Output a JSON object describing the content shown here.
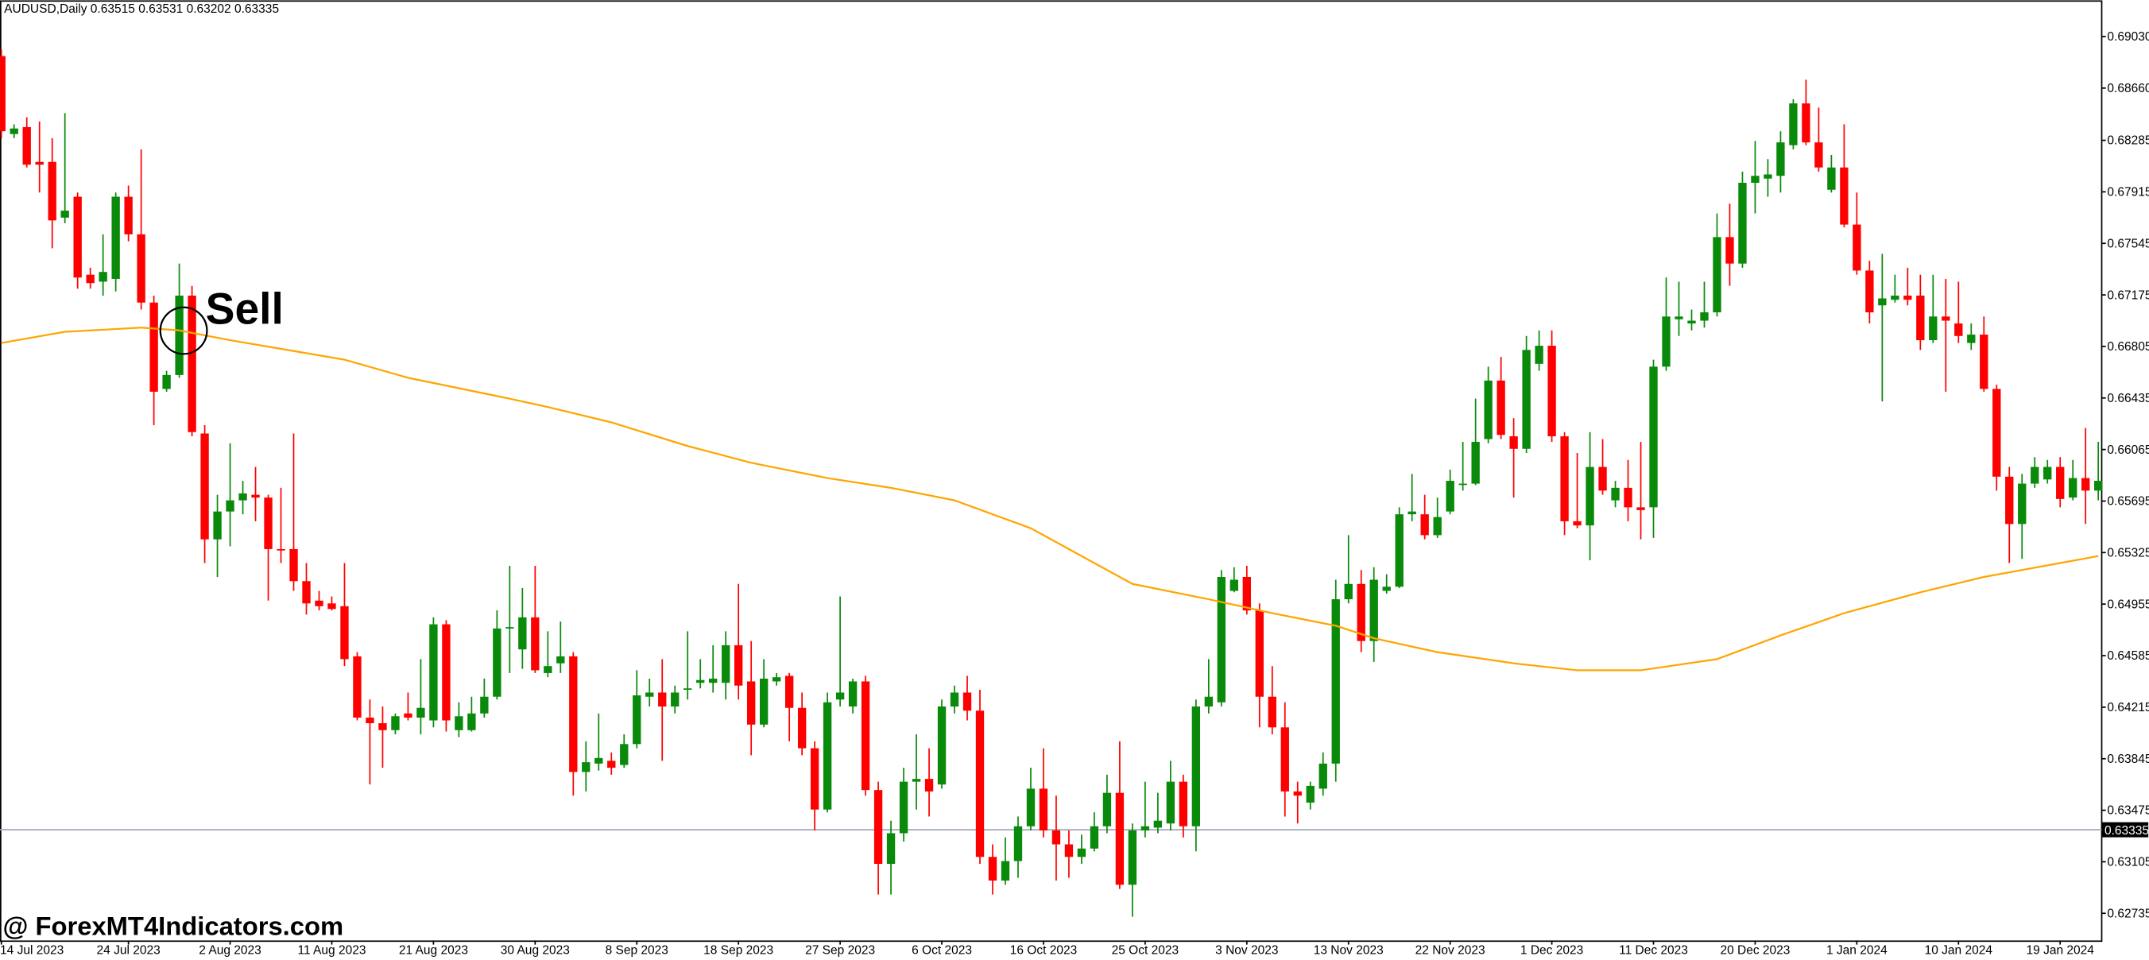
{
  "chart_data": {
    "type": "candlestick",
    "header": "AUDUSD,Daily  0.63515 0.63531 0.63202 0.63335",
    "annotation": "Sell",
    "watermark": "@ ForexMT4Indicators.com",
    "up_color": "#0a8a0a",
    "down_color": "#ff0000",
    "categories": [
      "14 Jul 2023",
      null,
      null,
      null,
      null,
      null,
      null,
      null,
      null,
      null,
      "24 Jul 2023",
      null,
      null,
      null,
      null,
      null,
      null,
      null,
      "2 Aug 2023",
      null,
      null,
      null,
      null,
      null,
      null,
      null,
      "11 Aug 2023",
      null,
      null,
      null,
      null,
      null,
      null,
      null,
      "21 Aug 2023",
      null,
      null,
      null,
      null,
      null,
      null,
      null,
      "30 Aug 2023",
      null,
      null,
      null,
      null,
      null,
      null,
      null,
      "8 Sep 2023",
      null,
      null,
      null,
      null,
      null,
      null,
      null,
      "18 Sep 2023",
      null,
      null,
      null,
      null,
      null,
      null,
      null,
      "27 Sep 2023",
      null,
      null,
      null,
      null,
      null,
      null,
      null,
      "6 Oct 2023",
      null,
      null,
      null,
      null,
      null,
      null,
      null,
      "16 Oct 2023",
      null,
      null,
      null,
      null,
      null,
      null,
      null,
      "25 Oct 2023",
      null,
      null,
      null,
      null,
      null,
      null,
      null,
      "3 Nov 2023",
      null,
      null,
      null,
      null,
      null,
      null,
      null,
      "13 Nov 2023",
      null,
      null,
      null,
      null,
      null,
      null,
      null,
      "22 Nov 2023",
      null,
      null,
      null,
      null,
      null,
      null,
      null,
      "1 Dec 2023",
      null,
      null,
      null,
      null,
      null,
      null,
      null,
      "11 Dec 2023",
      null,
      null,
      null,
      null,
      null,
      null,
      null,
      "20 Dec 2023",
      null,
      null,
      null,
      null,
      null,
      null,
      null,
      "1 Jan 2024",
      null,
      null,
      null,
      null,
      null,
      null,
      null,
      "10 Jan 2024",
      null,
      null,
      null,
      null,
      null,
      null,
      null,
      "19 Jan 2024",
      null,
      null,
      null
    ],
    "open": [
      0.6889,
      0.6833,
      0.6838,
      0.6813,
      0.6813,
      0.6773,
      0.6788,
      0.6732,
      0.6727,
      0.6729,
      0.6788,
      0.6761,
      0.6712,
      0.665,
      0.666,
      0.6717,
      0.6618,
      0.6542,
      0.6562,
      0.657,
      0.6574,
      0.6572,
      0.6535,
      0.6535,
      0.6512,
      0.6498,
      0.6496,
      0.6494,
      0.6458,
      0.6414,
      0.641,
      0.6405,
      0.6417,
      0.6414,
      0.6412,
      0.6481,
      0.6405,
      0.6405,
      0.6417,
      0.6429,
      0.6478,
      0.6463,
      0.6486,
      0.6446,
      0.6453,
      0.6458,
      0.6375,
      0.6381,
      0.6383,
      0.638,
      0.6395,
      0.6429,
      0.6432,
      0.6422,
      0.6434,
      0.6439,
      0.6439,
      0.6439,
      0.6466,
      0.644,
      0.6409,
      0.644,
      0.6444,
      0.6421,
      0.6392,
      0.6348,
      0.6427,
      0.6422,
      0.644,
      0.6362,
      0.6309,
      0.6331,
      0.6368,
      0.637,
      0.6366,
      0.6422,
      0.6432,
      0.6419,
      0.6314,
      0.6297,
      0.6311,
      0.6336,
      0.6363,
      0.6333,
      0.6323,
      0.6314,
      0.632,
      0.6336,
      0.636,
      0.6294,
      0.6333,
      0.6335,
      0.6338,
      0.6368,
      0.6336,
      0.6422,
      0.6425,
      0.6505,
      0.6515,
      0.6491,
      0.6429,
      0.6407,
      0.6361,
      0.6353,
      0.6363,
      0.6381,
      0.6499,
      0.651,
      0.6469,
      0.6505,
      0.6508,
      0.656,
      0.656,
      0.6545,
      0.6562,
      0.6581,
      0.6582,
      0.6614,
      0.6656,
      0.6616,
      0.6607,
      0.6668,
      0.6681,
      0.6616,
      0.6555,
      0.6552,
      0.6594,
      0.657,
      0.6579,
      0.6565,
      0.6565,
      0.6666,
      0.67,
      0.6697,
      0.6699,
      0.6705,
      0.6759,
      0.674,
      0.6798,
      0.6801,
      0.6803,
      0.6825,
      0.6855,
      0.6827,
      0.6793,
      0.6809,
      0.6768,
      0.6735,
      0.671,
      0.6714,
      0.6717,
      0.6717,
      0.6685,
      0.6702,
      0.6697,
      0.6683,
      0.6689,
      0.665,
      0.6587,
      0.6553,
      0.6582,
      0.6585,
      0.6594,
      0.6572,
      0.6586,
      0.6577
    ],
    "high": [
      0.6894,
      0.684,
      0.6845,
      0.6842,
      0.683,
      0.6848,
      0.6791,
      0.6737,
      0.6761,
      0.6791,
      0.6796,
      0.6822,
      0.6717,
      0.6663,
      0.674,
      0.6724,
      0.6624,
      0.6574,
      0.6611,
      0.6584,
      0.6594,
      0.6574,
      0.6579,
      0.6618,
      0.6525,
      0.6505,
      0.6501,
      0.6525,
      0.6461,
      0.6427,
      0.6422,
      0.6417,
      0.6432,
      0.6456,
      0.6486,
      0.6484,
      0.6425,
      0.6429,
      0.6442,
      0.6491,
      0.6523,
      0.6507,
      0.6523,
      0.6476,
      0.6483,
      0.6461,
      0.6397,
      0.6417,
      0.6389,
      0.6402,
      0.6448,
      0.6442,
      0.6456,
      0.6437,
      0.6476,
      0.6456,
      0.6466,
      0.6476,
      0.651,
      0.6469,
      0.6456,
      0.6446,
      0.6446,
      0.6432,
      0.6397,
      0.6432,
      0.6501,
      0.6442,
      0.6444,
      0.6368,
      0.634,
      0.6378,
      0.6402,
      0.6392,
      0.6427,
      0.6437,
      0.6444,
      0.6434,
      0.6323,
      0.6328,
      0.6343,
      0.6378,
      0.6392,
      0.6358,
      0.6333,
      0.633,
      0.6346,
      0.6373,
      0.6397,
      0.6338,
      0.6368,
      0.636,
      0.6383,
      0.6373,
      0.6427,
      0.6456,
      0.652,
      0.6522,
      0.6523,
      0.6496,
      0.6451,
      0.6425,
      0.6368,
      0.6368,
      0.6389,
      0.6513,
      0.6545,
      0.652,
      0.6522,
      0.6517,
      0.6565,
      0.6589,
      0.6574,
      0.6572,
      0.6592,
      0.6612,
      0.6643,
      0.6666,
      0.6673,
      0.6629,
      0.6688,
      0.6692,
      0.6692,
      0.6619,
      0.6604,
      0.6619,
      0.6614,
      0.6584,
      0.6599,
      0.6612,
      0.6671,
      0.673,
      0.6727,
      0.6707,
      0.6727,
      0.6776,
      0.6783,
      0.6806,
      0.6828,
      0.6815,
      0.6835,
      0.6858,
      0.6872,
      0.6852,
      0.6818,
      0.684,
      0.6791,
      0.6742,
      0.6747,
      0.6732,
      0.6737,
      0.6732,
      0.6732,
      0.6729,
      0.6727,
      0.6697,
      0.6702,
      0.6653,
      0.6594,
      0.6589,
      0.6601,
      0.6599,
      0.6601,
      0.6599,
      0.6622,
      0.6612
    ],
    "low": [
      0.683,
      0.683,
      0.6809,
      0.6791,
      0.6751,
      0.6769,
      0.6722,
      0.6722,
      0.6717,
      0.672,
      0.6756,
      0.6707,
      0.6624,
      0.6648,
      0.6658,
      0.6616,
      0.6525,
      0.6515,
      0.6537,
      0.656,
      0.6555,
      0.6498,
      0.6525,
      0.6505,
      0.6488,
      0.6491,
      0.6491,
      0.6451,
      0.6412,
      0.6366,
      0.6378,
      0.6402,
      0.6412,
      0.6402,
      0.6407,
      0.6404,
      0.64,
      0.6404,
      0.6414,
      0.6427,
      0.6446,
      0.6449,
      0.6446,
      0.6443,
      0.6446,
      0.6358,
      0.6361,
      0.6376,
      0.6373,
      0.6378,
      0.6392,
      0.6422,
      0.6383,
      0.6417,
      0.6427,
      0.6435,
      0.6432,
      0.6427,
      0.6427,
      0.6387,
      0.6407,
      0.6437,
      0.6397,
      0.6387,
      0.6333,
      0.6346,
      0.6422,
      0.6417,
      0.6358,
      0.6287,
      0.6287,
      0.6325,
      0.6348,
      0.6343,
      0.6363,
      0.6417,
      0.6412,
      0.6309,
      0.6287,
      0.6294,
      0.6299,
      0.6333,
      0.6328,
      0.6297,
      0.6299,
      0.6309,
      0.6318,
      0.6331,
      0.6291,
      0.6271,
      0.6328,
      0.6331,
      0.6333,
      0.6328,
      0.6318,
      0.6417,
      0.6422,
      0.6504,
      0.6488,
      0.6407,
      0.6402,
      0.6343,
      0.6338,
      0.6348,
      0.6358,
      0.6368,
      0.6496,
      0.6461,
      0.6454,
      0.6503,
      0.6507,
      0.6555,
      0.6542,
      0.6543,
      0.656,
      0.6577,
      0.6581,
      0.6611,
      0.6614,
      0.6572,
      0.6604,
      0.6663,
      0.6612,
      0.6545,
      0.655,
      0.6527,
      0.6574,
      0.6565,
      0.6555,
      0.6542,
      0.6543,
      0.6663,
      0.6688,
      0.6692,
      0.6694,
      0.6702,
      0.6724,
      0.6737,
      0.6776,
      0.6788,
      0.6791,
      0.6822,
      0.6825,
      0.6806,
      0.6791,
      0.6766,
      0.6732,
      0.6697,
      0.6641,
      0.6712,
      0.671,
      0.6678,
      0.6683,
      0.6648,
      0.6683,
      0.6678,
      0.6648,
      0.6577,
      0.6525,
      0.6528,
      0.6579,
      0.6582,
      0.6565,
      0.657,
      0.6553,
      0.657
    ],
    "close": [
      0.6835,
      0.6837,
      0.6811,
      0.6811,
      0.6771,
      0.6778,
      0.673,
      0.6726,
      0.6734,
      0.6788,
      0.6761,
      0.6712,
      0.6648,
      0.666,
      0.6717,
      0.6619,
      0.6542,
      0.6562,
      0.657,
      0.6575,
      0.6572,
      0.6535,
      0.6534,
      0.6512,
      0.6496,
      0.6494,
      0.6492,
      0.6456,
      0.6414,
      0.641,
      0.6405,
      0.6415,
      0.6414,
      0.6421,
      0.6481,
      0.6412,
      0.6415,
      0.6417,
      0.6429,
      0.6478,
      0.6479,
      0.6486,
      0.6448,
      0.6451,
      0.6458,
      0.6375,
      0.6382,
      0.6385,
      0.6378,
      0.6395,
      0.643,
      0.6432,
      0.6422,
      0.6432,
      0.6435,
      0.6441,
      0.6442,
      0.6466,
      0.6437,
      0.6409,
      0.6442,
      0.6443,
      0.6421,
      0.6392,
      0.6348,
      0.6425,
      0.6432,
      0.644,
      0.6362,
      0.6309,
      0.6331,
      0.6368,
      0.637,
      0.6361,
      0.6422,
      0.6432,
      0.6419,
      0.6314,
      0.6297,
      0.6311,
      0.6336,
      0.6363,
      0.6333,
      0.6323,
      0.6314,
      0.632,
      0.6336,
      0.636,
      0.6294,
      0.6333,
      0.6336,
      0.634,
      0.6368,
      0.6336,
      0.6422,
      0.6429,
      0.6515,
      0.6513,
      0.6491,
      0.6429,
      0.6407,
      0.6361,
      0.6358,
      0.6365,
      0.6381,
      0.6499,
      0.651,
      0.6469,
      0.6513,
      0.6508,
      0.656,
      0.6562,
      0.6545,
      0.6558,
      0.6584,
      0.6582,
      0.6612,
      0.6656,
      0.6617,
      0.6607,
      0.6678,
      0.6681,
      0.6616,
      0.6555,
      0.6552,
      0.6594,
      0.6577,
      0.6579,
      0.6565,
      0.6563,
      0.6666,
      0.6702,
      0.6702,
      0.6699,
      0.6705,
      0.6759,
      0.674,
      0.6798,
      0.6803,
      0.6804,
      0.6827,
      0.6855,
      0.6827,
      0.6809,
      0.6809,
      0.6768,
      0.6735,
      0.6705,
      0.6715,
      0.6717,
      0.6714,
      0.6685,
      0.6702,
      0.6699,
      0.6688,
      0.6689,
      0.665,
      0.6587,
      0.6553,
      0.6582,
      0.6594,
      0.6594,
      0.6571,
      0.6586,
      0.6577,
      0.6584
    ],
    "moving_average": {
      "color": "#ffa500",
      "x": [
        0,
        5,
        11,
        14,
        18,
        27,
        32,
        40,
        43,
        48,
        54,
        59,
        65,
        70,
        75,
        81,
        86,
        89,
        95,
        100,
        105,
        108,
        113,
        119,
        124,
        129,
        135,
        140,
        145,
        151,
        156,
        162,
        165
      ],
      "values": [
        0.6683,
        0.6691,
        0.6694,
        0.6692,
        0.6685,
        0.6671,
        0.6658,
        0.6643,
        0.6637,
        0.6626,
        0.6609,
        0.6597,
        0.6586,
        0.6579,
        0.657,
        0.655,
        0.6525,
        0.651,
        0.6499,
        0.6489,
        0.648,
        0.6471,
        0.6461,
        0.6453,
        0.6448,
        0.6448,
        0.6456,
        0.6473,
        0.6489,
        0.6504,
        0.6515,
        0.6525,
        0.653
      ]
    },
    "price_line": {
      "value": 0.63335,
      "color": "#a0a8b8"
    },
    "ylim": [
      0.6254,
      0.6929
    ],
    "yticks": [
      {
        "value": 0.6903,
        "label": "0.69030"
      },
      {
        "value": 0.6866,
        "label": "0.68660"
      },
      0.68285,
      0.67915,
      0.67545,
      0.67175,
      0.66805,
      0.66435,
      0.66065,
      0.65695,
      0.65325,
      0.64955,
      0.64585,
      0.64215,
      0.63845,
      0.63475,
      0.63105,
      0.62735
    ]
  }
}
